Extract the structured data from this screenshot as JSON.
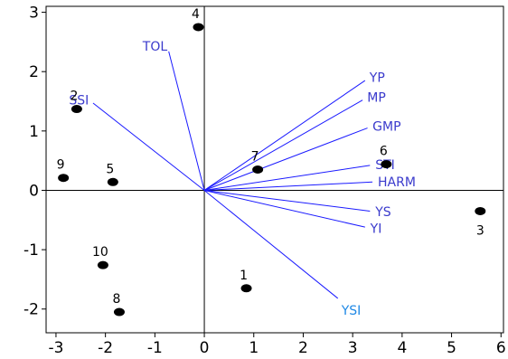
{
  "chart_data": {
    "type": "scatter",
    "title": "",
    "xlabel": "",
    "ylabel": "",
    "xlim": [
      -3.2,
      6.05
    ],
    "ylim": [
      -2.4,
      3.1
    ],
    "xticks": [
      "-3",
      "-2",
      "-1",
      "0",
      "1",
      "2",
      "3",
      "4",
      "5",
      "6"
    ],
    "yticks": [
      "-2",
      "-1",
      "0",
      "1",
      "2",
      "3"
    ],
    "grid": false,
    "colors": {
      "vector": "#1a1aff",
      "vector_label": "#3a3acc",
      "highlight_label": "#1e88e5",
      "point": "#000000",
      "frame": "#000000"
    },
    "points": [
      {
        "label": "1",
        "x": 0.85,
        "y": -1.65
      },
      {
        "label": "2",
        "x": -2.58,
        "y": 1.37
      },
      {
        "label": "3",
        "x": 5.58,
        "y": -0.35
      },
      {
        "label": "4",
        "x": -0.12,
        "y": 2.75
      },
      {
        "label": "5",
        "x": -1.85,
        "y": 0.14
      },
      {
        "label": "6",
        "x": 3.68,
        "y": 0.44
      },
      {
        "label": "7",
        "x": 1.08,
        "y": 0.35
      },
      {
        "label": "8",
        "x": -1.72,
        "y": -2.05
      },
      {
        "label": "9",
        "x": -2.85,
        "y": 0.21
      },
      {
        "label": "10",
        "x": -2.05,
        "y": -1.26
      }
    ],
    "vectors": [
      {
        "label": "TOL",
        "x": -0.72,
        "y": 2.34
      },
      {
        "label": "SSI",
        "x": -2.25,
        "y": 1.47
      },
      {
        "label": "YP",
        "x": 3.25,
        "y": 1.85
      },
      {
        "label": "MP",
        "x": 3.2,
        "y": 1.52
      },
      {
        "label": "GMP",
        "x": 3.3,
        "y": 1.05
      },
      {
        "label": "STI",
        "x": 3.35,
        "y": 0.42
      },
      {
        "label": "HARM",
        "x": 3.4,
        "y": 0.14
      },
      {
        "label": "YS",
        "x": 3.35,
        "y": -0.35
      },
      {
        "label": "YI",
        "x": 3.25,
        "y": -0.62
      },
      {
        "label": "YSI",
        "x": 2.7,
        "y": -1.82
      }
    ]
  }
}
